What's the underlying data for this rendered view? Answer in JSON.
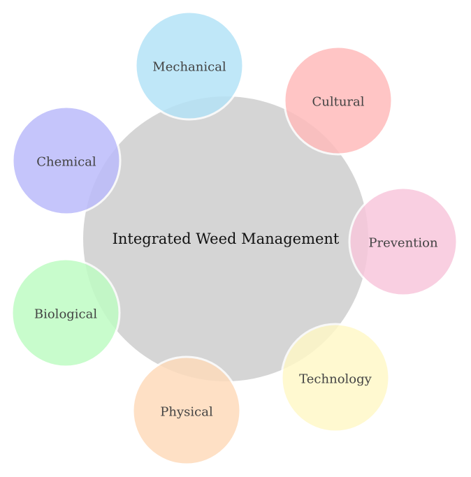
{
  "center": {
    "label": "Integrated Weed Management",
    "color": "#d5d5d5"
  },
  "nodes": [
    {
      "id": "mechanical",
      "label": "Mechanical",
      "color": "#b5e3f7"
    },
    {
      "id": "cultural",
      "label": "Cultural",
      "color": "#ffbcbc"
    },
    {
      "id": "prevention",
      "label": "Prevention",
      "color": "#f8c7dc"
    },
    {
      "id": "technology",
      "label": "Technology",
      "color": "#fff8c8"
    },
    {
      "id": "physical",
      "label": "Physical",
      "color": "#fedbbc"
    },
    {
      "id": "biological",
      "label": "Biological",
      "color": "#bffcc4"
    },
    {
      "id": "chemical",
      "label": "Chemical",
      "color": "#bcbcfb"
    }
  ]
}
